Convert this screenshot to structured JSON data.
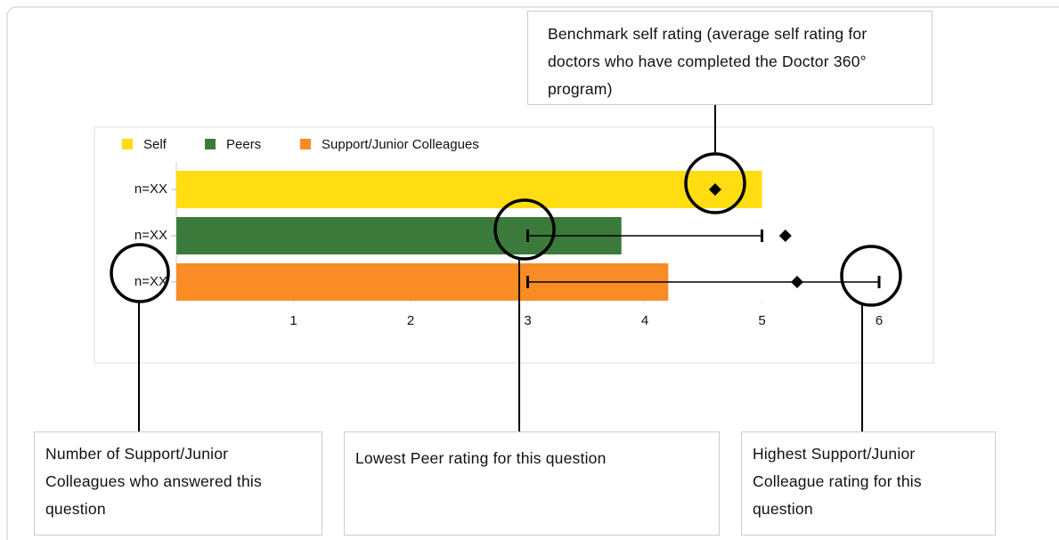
{
  "chart_data": {
    "type": "bar",
    "legend": [
      "Self",
      "Peers",
      "Support/Junior Colleagues"
    ],
    "colors": [
      "#ffdd11",
      "#3b7a3a",
      "#f98c25"
    ],
    "categories": [
      "n=XX",
      "n=XX",
      "n=XX"
    ],
    "values": [
      5,
      3.8,
      4.2
    ],
    "benchmarks": [
      4.6,
      5.2,
      5.3
    ],
    "low": [
      null,
      3,
      3
    ],
    "high": [
      null,
      5,
      6
    ],
    "xlim": [
      0,
      6
    ],
    "xticks": [
      1,
      2,
      3,
      4,
      5,
      6
    ],
    "grid": false
  },
  "annotations": {
    "benchmark": "Benchmark self rating (average self rating for doctors who have completed the Doctor 360° program)",
    "respondents": "Number of Support/Junior Colleagues who answered this question",
    "lowest": "Lowest Peer rating for this question",
    "highest": "Highest Support/Junior Colleague rating for this question"
  }
}
